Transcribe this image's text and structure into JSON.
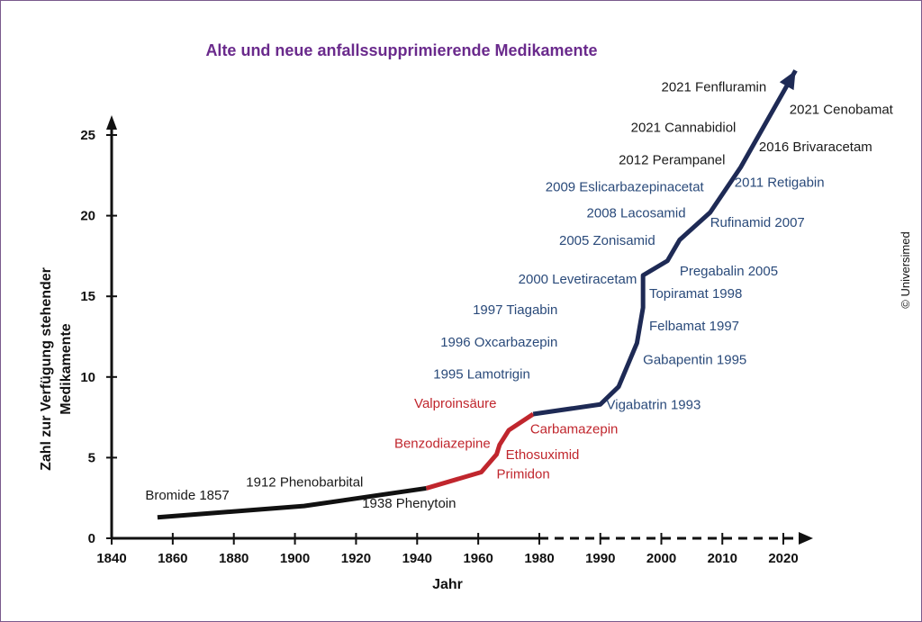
{
  "chart_data": {
    "type": "line",
    "title": "Alte und neue anfallssupprimierende Medikamente",
    "xlabel": "Jahr",
    "ylabel_line1": "Zahl zur Verfügung stehender",
    "ylabel_line2": "Medikamente",
    "xlim": [
      1840,
      2020
    ],
    "ylim": [
      0,
      25
    ],
    "xticks": [
      1840,
      1860,
      1880,
      1900,
      1920,
      1940,
      1960,
      1980,
      1990,
      2000,
      2010,
      2020
    ],
    "yticks": [
      0,
      5,
      10,
      15,
      20,
      25
    ],
    "grid": false,
    "colors": {
      "old": "#111111",
      "mid": "#c0262d",
      "new": "#1e2a55",
      "title": "#6a2a8c",
      "new_label": "#2a4a7a"
    },
    "series": [
      {
        "points": [
          [
            1855,
            1.3
          ],
          [
            1903,
            2.0
          ],
          [
            1943,
            3.1
          ]
        ]
      },
      {
        "points": [
          [
            1943,
            3.1
          ],
          [
            1961,
            4.1
          ],
          [
            1966,
            5.2
          ],
          [
            1967,
            5.8
          ],
          [
            1970,
            6.7
          ],
          [
            1978,
            7.7
          ]
        ]
      },
      {
        "points": [
          [
            1978,
            7.7
          ],
          [
            1990,
            8.3
          ],
          [
            1993,
            9.4
          ],
          [
            1996,
            12.1
          ],
          [
            1997,
            14.3
          ],
          [
            1997,
            16.3
          ],
          [
            2001,
            17.2
          ],
          [
            2003,
            18.5
          ],
          [
            2008,
            20.2
          ],
          [
            2013,
            23.0
          ],
          [
            2022,
            29.0
          ]
        ]
      }
    ],
    "annotations": [
      {
        "text": "Bromide 1857",
        "x": 1851,
        "y": 2.4,
        "anchor": "start",
        "group": "old"
      },
      {
        "text": "1912 Phenobarbital",
        "x": 1884,
        "y": 3.2,
        "anchor": "start",
        "group": "old"
      },
      {
        "text": "1938 Phenytoin",
        "x": 1922,
        "y": 1.9,
        "anchor": "start",
        "group": "old"
      },
      {
        "text": "Valproinsäure",
        "x": 1966,
        "y": 8.1,
        "anchor": "end",
        "group": "mid"
      },
      {
        "text": "Carbamazepin",
        "x": 1977,
        "y": 6.5,
        "anchor": "start",
        "group": "mid"
      },
      {
        "text": "Benzodiazepine",
        "x": 1964,
        "y": 5.6,
        "anchor": "end",
        "group": "mid"
      },
      {
        "text": "Ethosuximid",
        "x": 1969,
        "y": 4.9,
        "anchor": "start",
        "group": "mid"
      },
      {
        "text": "Primidon",
        "x": 1966,
        "y": 3.7,
        "anchor": "start",
        "group": "mid"
      },
      {
        "text": "Vigabatrin 1993",
        "x": 1991,
        "y": 8.0,
        "anchor": "start",
        "group": "new"
      },
      {
        "text": "1995 Lamotrigin",
        "x": 1977,
        "y": 9.9,
        "anchor": "end",
        "group": "new"
      },
      {
        "text": "Gabapentin 1995",
        "x": 1997,
        "y": 10.8,
        "anchor": "start",
        "group": "new"
      },
      {
        "text": "1996 Oxcarbazepin",
        "x": 1983,
        "y": 11.9,
        "anchor": "end",
        "group": "new"
      },
      {
        "text": "Felbamat 1997",
        "x": 1998,
        "y": 12.9,
        "anchor": "start",
        "group": "new"
      },
      {
        "text": "1997 Tiagabin",
        "x": 1983,
        "y": 13.9,
        "anchor": "end",
        "group": "new"
      },
      {
        "text": "Topiramat 1998",
        "x": 1998,
        "y": 14.9,
        "anchor": "start",
        "group": "new"
      },
      {
        "text": "2000 Levetiracetam",
        "x": 1996,
        "y": 15.8,
        "anchor": "end",
        "group": "new"
      },
      {
        "text": "Pregabalin 2005",
        "x": 2003,
        "y": 16.3,
        "anchor": "start",
        "group": "new"
      },
      {
        "text": "2005 Zonisamid",
        "x": 1999,
        "y": 18.2,
        "anchor": "end",
        "group": "new"
      },
      {
        "text": "Rufinamid 2007",
        "x": 2008,
        "y": 19.3,
        "anchor": "start",
        "group": "new"
      },
      {
        "text": "2008 Lacosamid",
        "x": 2004,
        "y": 19.9,
        "anchor": "end",
        "group": "new"
      },
      {
        "text": "2009 Eslicarbazepinacetat",
        "x": 1981,
        "y": 21.5,
        "anchor": "start",
        "group": "new"
      },
      {
        "text": "2011 Retigabin",
        "x": 2012,
        "y": 21.8,
        "anchor": "start",
        "group": "new"
      },
      {
        "text": "2012 Perampanel",
        "x": 1993,
        "y": 23.2,
        "anchor": "start",
        "group": "old"
      },
      {
        "text": "2016 Brivaracetam",
        "x": 2016,
        "y": 24.0,
        "anchor": "start",
        "group": "old"
      },
      {
        "text": "2021 Cannabidiol",
        "x": 1995,
        "y": 25.2,
        "anchor": "start",
        "group": "old"
      },
      {
        "text": "2021 Cenobamat",
        "x": 2021,
        "y": 26.3,
        "anchor": "start",
        "group": "old"
      },
      {
        "text": "2021 Fenfluramin",
        "x": 2000,
        "y": 27.7,
        "anchor": "start",
        "group": "old"
      }
    ]
  },
  "credit": "© Universimed"
}
